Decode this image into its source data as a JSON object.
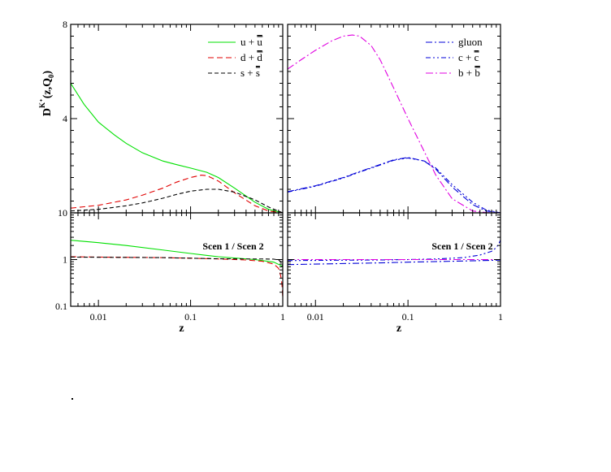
{
  "chart_data": [
    {
      "type": "line",
      "panel": "top-left",
      "ylabel_main": "D",
      "ylabel_sup": "K⁺",
      "ylabel_args": "(z,Q",
      "ylabel_sub": "0",
      "ylabel_end": ")",
      "xscale": "log",
      "xlim": [
        0.005,
        1
      ],
      "yscale": "linear",
      "ylim": [
        0,
        8
      ],
      "yticks": [
        {
          "v": 4,
          "label": "4"
        },
        {
          "v": 8,
          "label": "8"
        }
      ],
      "legend_position": "top-right",
      "series": [
        {
          "name": "u + ū",
          "legend_base": "u + ",
          "legend_bar": "u",
          "color": "#00e000",
          "dash": "",
          "x": [
            0.005,
            0.007,
            0.01,
            0.015,
            0.02,
            0.03,
            0.05,
            0.07,
            0.1,
            0.15,
            0.2,
            0.3,
            0.5,
            0.7,
            1.0
          ],
          "y": [
            5.5,
            4.6,
            3.85,
            3.3,
            2.95,
            2.55,
            2.2,
            2.05,
            1.9,
            1.72,
            1.5,
            1.05,
            0.45,
            0.15,
            0.0
          ]
        },
        {
          "name": "d + d̄",
          "legend_base": "d + ",
          "legend_bar": "d",
          "color": "#e00000",
          "dash": "7,4",
          "x": [
            0.005,
            0.01,
            0.02,
            0.03,
            0.05,
            0.07,
            0.1,
            0.13,
            0.15,
            0.2,
            0.3,
            0.5,
            0.7,
            1.0
          ],
          "y": [
            0.2,
            0.32,
            0.55,
            0.75,
            1.05,
            1.3,
            1.5,
            1.6,
            1.58,
            1.35,
            0.85,
            0.3,
            0.08,
            0.0
          ]
        },
        {
          "name": "s + s̄",
          "legend_base": "s + ",
          "legend_bar": "s",
          "color": "#000000",
          "dash": "5,3",
          "x": [
            0.005,
            0.01,
            0.02,
            0.03,
            0.05,
            0.07,
            0.1,
            0.15,
            0.2,
            0.3,
            0.5,
            0.7,
            1.0
          ],
          "y": [
            0.08,
            0.15,
            0.3,
            0.42,
            0.62,
            0.78,
            0.92,
            1.0,
            1.0,
            0.88,
            0.55,
            0.25,
            0.0
          ]
        }
      ]
    },
    {
      "type": "line",
      "panel": "top-right",
      "xscale": "log",
      "xlim": [
        0.005,
        1
      ],
      "yscale": "linear",
      "ylim": [
        0,
        8
      ],
      "legend_position": "top-right",
      "series": [
        {
          "name": "gluon",
          "legend_base": "gluon",
          "legend_bar": "",
          "color": "#0000d8",
          "dash": "8,3,2,3",
          "x": [
            0.005,
            0.01,
            0.02,
            0.03,
            0.05,
            0.07,
            0.1,
            0.15,
            0.2,
            0.3,
            0.5,
            0.7,
            1.0
          ],
          "y": [
            0.9,
            1.15,
            1.5,
            1.75,
            2.05,
            2.25,
            2.35,
            2.2,
            1.85,
            1.1,
            0.35,
            0.08,
            0.0
          ]
        },
        {
          "name": "c + c̄",
          "legend_base": "c + ",
          "legend_bar": "c",
          "color": "#0000d8",
          "dash": "6,3,2,3,2,3",
          "x": [
            0.005,
            0.01,
            0.02,
            0.03,
            0.05,
            0.07,
            0.1,
            0.15,
            0.2,
            0.3,
            0.5,
            0.7,
            1.0
          ],
          "y": [
            0.88,
            1.13,
            1.48,
            1.73,
            2.03,
            2.23,
            2.33,
            2.2,
            1.9,
            1.2,
            0.45,
            0.12,
            0.0
          ]
        },
        {
          "name": "b + b̄",
          "legend_base": "b + ",
          "legend_bar": "b",
          "color": "#e000e0",
          "dash": "9,3,2,3",
          "x": [
            0.005,
            0.007,
            0.01,
            0.015,
            0.02,
            0.025,
            0.03,
            0.04,
            0.05,
            0.07,
            0.1,
            0.15,
            0.2,
            0.3,
            0.5,
            0.7,
            1.0
          ],
          "y": [
            6.1,
            6.5,
            6.9,
            7.3,
            7.5,
            7.55,
            7.5,
            7.1,
            6.5,
            5.3,
            4.0,
            2.6,
            1.6,
            0.6,
            0.08,
            0.01,
            0.0
          ]
        }
      ]
    },
    {
      "type": "line",
      "panel": "bottom-left",
      "annotation": "Scen 1 / Scen 2",
      "xlabel": "z",
      "xscale": "log",
      "xlim": [
        0.005,
        1
      ],
      "yscale": "log",
      "ylim": [
        0.1,
        10
      ],
      "yticks": [
        {
          "v": 0.1,
          "label": "0.1"
        },
        {
          "v": 1,
          "label": "1"
        },
        {
          "v": 10,
          "label": "10"
        }
      ],
      "xticks": [
        {
          "v": 0.01,
          "label": "0.01"
        },
        {
          "v": 0.1,
          "label": "0.1"
        },
        {
          "v": 1,
          "label": "1"
        }
      ],
      "series": [
        {
          "color": "#00e000",
          "dash": "",
          "x": [
            0.005,
            0.01,
            0.02,
            0.05,
            0.1,
            0.2,
            0.5,
            0.8,
            0.95,
            1.0
          ],
          "y": [
            2.6,
            2.3,
            2.0,
            1.6,
            1.35,
            1.15,
            1.0,
            0.88,
            0.75,
            0.7
          ]
        },
        {
          "color": "#e00000",
          "dash": "7,4",
          "x": [
            0.005,
            0.01,
            0.05,
            0.1,
            0.2,
            0.4,
            0.6,
            0.8,
            0.9,
            0.95,
            0.98,
            1.0
          ],
          "y": [
            1.15,
            1.13,
            1.1,
            1.07,
            1.03,
            0.98,
            0.92,
            0.8,
            0.65,
            0.45,
            0.3,
            0.15
          ]
        },
        {
          "color": "#000000",
          "dash": "5,3",
          "x": [
            0.005,
            0.01,
            0.05,
            0.1,
            0.2,
            0.4,
            0.6,
            0.8,
            0.9,
            0.95,
            1.0
          ],
          "y": [
            1.13,
            1.12,
            1.1,
            1.07,
            1.04,
            1.03,
            1.03,
            1.02,
            0.98,
            0.9,
            0.7
          ]
        }
      ]
    },
    {
      "type": "line",
      "panel": "bottom-right",
      "annotation": "Scen 1 / Scen 2",
      "xlabel": "z",
      "xscale": "log",
      "xlim": [
        0.005,
        1
      ],
      "yscale": "log",
      "ylim": [
        0.1,
        10
      ],
      "xticks": [
        {
          "v": 0.01,
          "label": "0.01"
        },
        {
          "v": 0.1,
          "label": "0.1"
        },
        {
          "v": 1,
          "label": "1"
        }
      ],
      "series": [
        {
          "color": "#0000d8",
          "dash": "8,3,2,3",
          "x": [
            0.005,
            0.01,
            0.05,
            0.1,
            0.3,
            0.6,
            1.0
          ],
          "y": [
            0.78,
            0.8,
            0.85,
            0.88,
            0.92,
            0.95,
            0.97
          ]
        },
        {
          "color": "#0000d8",
          "dash": "6,3,2,3,2,3",
          "x": [
            0.005,
            0.01,
            0.05,
            0.1,
            0.2,
            0.4,
            0.6,
            0.8,
            0.9,
            0.95,
            1.0
          ],
          "y": [
            0.95,
            0.96,
            0.98,
            1.0,
            1.03,
            1.1,
            1.25,
            1.5,
            1.8,
            2.1,
            2.6
          ]
        },
        {
          "color": "#e000e0",
          "dash": "9,3,2,3",
          "x": [
            0.005,
            0.01,
            0.05,
            0.1,
            0.3,
            0.6,
            1.0
          ],
          "y": [
            1.0,
            1.0,
            1.0,
            1.0,
            1.0,
            1.0,
            1.0
          ]
        }
      ]
    }
  ]
}
